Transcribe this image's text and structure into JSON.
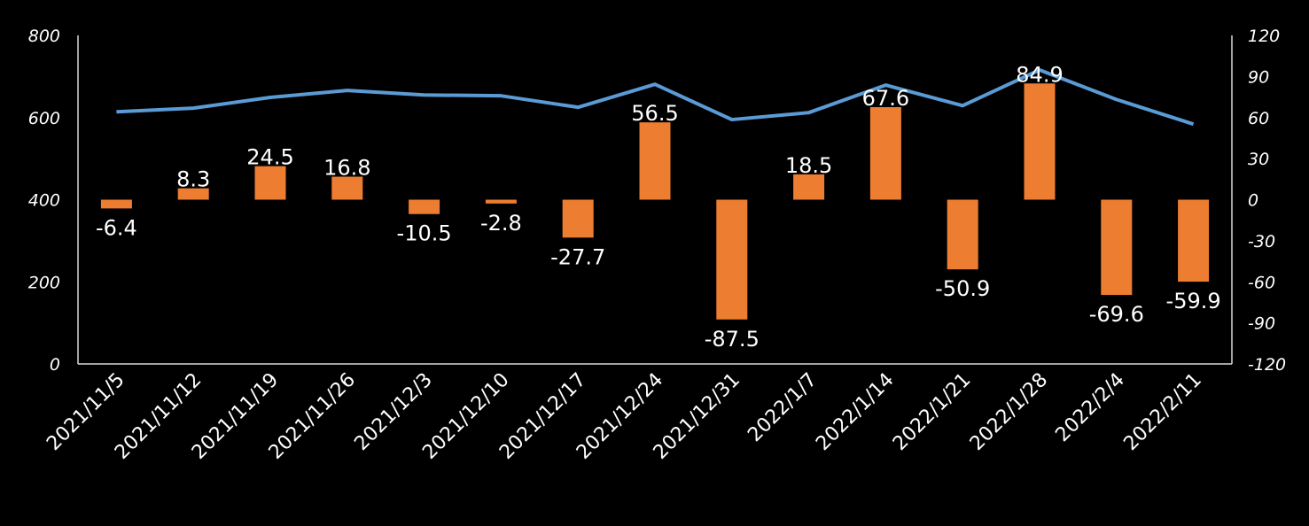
{
  "chart_data": {
    "type": "bar+line",
    "categories": [
      "2021/11/5",
      "2021/11/12",
      "2021/11/19",
      "2021/11/26",
      "2021/12/3",
      "2021/12/10",
      "2021/12/17",
      "2021/12/24",
      "2021/12/31",
      "2022/1/7",
      "2022/1/14",
      "2022/1/21",
      "2022/1/28",
      "2022/2/4",
      "2022/2/11"
    ],
    "series": [
      {
        "name": "line",
        "type": "line",
        "axis": "left",
        "color": "#5B9BD5",
        "values": [
          614,
          623,
          649,
          666,
          655,
          653,
          625,
          681,
          595,
          612,
          679,
          629,
          716,
          644,
          584
        ]
      },
      {
        "name": "bars",
        "type": "bar",
        "axis": "right",
        "color": "#ED7D31",
        "values": [
          -6.4,
          8.3,
          24.5,
          16.8,
          -10.5,
          -2.8,
          -27.7,
          56.5,
          -87.5,
          18.5,
          67.6,
          -50.9,
          84.9,
          -69.6,
          -59.9
        ],
        "labels": [
          "-6.4",
          "8.3",
          "24.5",
          "16.8",
          "-10.5",
          "-2.8",
          "-27.7",
          "56.5",
          "-87.5",
          "18.5",
          "67.6",
          "-50.9",
          "84.9",
          "-69.6",
          "-59.9"
        ]
      }
    ],
    "left_axis": {
      "ylim": [
        0,
        800
      ],
      "ticks": [
        "0",
        "200",
        "400",
        "600",
        "800"
      ]
    },
    "right_axis": {
      "ylim": [
        -120,
        120
      ],
      "ticks": [
        "-120",
        "-90",
        "-60",
        "-30",
        "0",
        "30",
        "60",
        "90",
        "120"
      ]
    },
    "grid": false
  }
}
